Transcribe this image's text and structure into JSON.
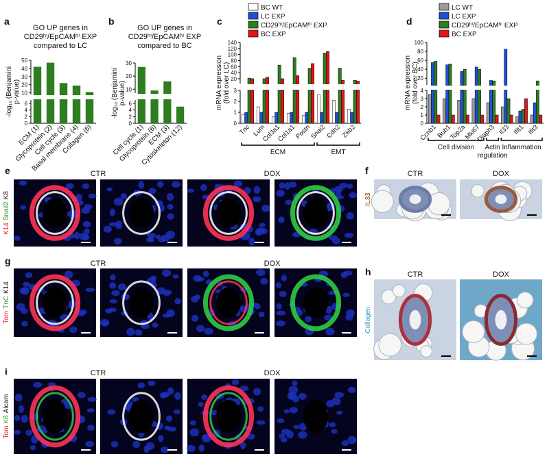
{
  "chart_data": [
    {
      "type": "bar",
      "panel": "a",
      "title": [
        "GO UP genes in",
        "CD29ʰⁱ/EpCAMʰⁱ EXP",
        "compared to LC"
      ],
      "ylabel": [
        "-log₁₀ (Benjamini",
        "p-value)"
      ],
      "categories": [
        "ECM (1)",
        "Glycoprotein (2)",
        "Cell cycle (3)",
        "Basal membrane (4)",
        "Collagen (6)"
      ],
      "values": [
        42,
        47,
        22,
        19,
        11
      ],
      "color": "#2e7d1f",
      "ylim": [
        8,
        50
      ],
      "yticks": [
        10,
        20,
        30,
        40,
        50
      ],
      "ylim_low": [
        0,
        7
      ],
      "yticks_low": [
        0,
        2,
        4,
        6
      ]
    },
    {
      "type": "bar",
      "panel": "b",
      "title": [
        "GO UP genes in",
        "CD29ʰⁱ/EpCAMʰⁱ EXP",
        "compared to BC"
      ],
      "ylabel": [
        "-log₁₀ (Benjamini",
        "p-value)"
      ],
      "categories": [
        "Cell cycle (1)",
        "Glycoprotein (6)",
        "ECM (3)",
        "Cytoskeleton (12)"
      ],
      "values": [
        27,
        9,
        16,
        5
      ],
      "color": "#2e7d1f",
      "ylim": [
        7,
        30
      ],
      "yticks": [
        10,
        20,
        30
      ],
      "ylim_low": [
        0,
        7
      ],
      "yticks_low": [
        0,
        2,
        4,
        6
      ]
    },
    {
      "type": "grouped-bar",
      "panel": "c",
      "ylabel": [
        "mRNA expression",
        "(fold over LC)"
      ],
      "categories": [
        "Tnc",
        "Lum",
        "Col3a1",
        "Col1a1",
        "Postn",
        "Snai2",
        "Cdh2",
        "Zeb2"
      ],
      "series": [
        {
          "name": "BC WT",
          "color": "#ffffff",
          "values": [
            0.8,
            1.5,
            0.6,
            0.9,
            0.7,
            2.6,
            2.1,
            1.3
          ]
        },
        {
          "name": "LC EXP",
          "color": "#1f4fd6",
          "values": [
            1,
            1,
            1,
            1,
            1,
            1,
            1,
            1
          ]
        },
        {
          "name": "CD29ʰⁱ/EpCAMʰⁱ EXP",
          "color": "#2e7d1f",
          "values": [
            22,
            20,
            65,
            90,
            55,
            105,
            55,
            15
          ]
        },
        {
          "name": "BC EXP",
          "color": "#e0141e",
          "values": [
            20,
            25,
            20,
            30,
            70,
            110,
            15,
            12
          ]
        }
      ],
      "ylim": [
        4,
        140
      ],
      "yticks": [
        20,
        40,
        60,
        80,
        100,
        120,
        140
      ],
      "ylim_low": [
        0,
        3
      ],
      "yticks_low": [
        0,
        1,
        2,
        3
      ],
      "groups": [
        {
          "label": "ECM",
          "span": [
            0,
            4
          ]
        },
        {
          "label": "EMT",
          "span": [
            5,
            7
          ]
        }
      ]
    },
    {
      "type": "grouped-bar",
      "panel": "d",
      "ylabel": [
        "mRNA expression",
        "(fold over BC)"
      ],
      "categories": [
        "Ccnb1",
        "Bub1",
        "Top2a",
        "Mki67",
        "Diaph3",
        "Il33",
        "Ifit1",
        "Ifit3"
      ],
      "series": [
        {
          "name": "LC WT",
          "color": "#9a9a9a",
          "values": [
            3.5,
            3,
            2.8,
            3,
            2.5,
            2,
            0.8,
            1
          ]
        },
        {
          "name": "LC EXP",
          "color": "#1f4fd6",
          "values": [
            55,
            50,
            35,
            45,
            15,
            85,
            1.5,
            2.5
          ]
        },
        {
          "name": "CD29ʰⁱ/EpCAMʰⁱ EXP",
          "color": "#2e7d1f",
          "values": [
            58,
            52,
            40,
            40,
            14,
            3,
            1.7,
            14
          ]
        },
        {
          "name": "BC EXP",
          "color": "#e0141e",
          "values": [
            1,
            1,
            1,
            1,
            1,
            1,
            3,
            1
          ]
        }
      ],
      "ylim": [
        5,
        100
      ],
      "yticks": [
        20,
        40,
        60,
        80,
        100
      ],
      "ylim_low": [
        0,
        4
      ],
      "yticks_low": [
        0,
        1,
        2,
        3,
        4
      ],
      "groups": [
        {
          "label": "Cell division",
          "span": [
            0,
            3
          ]
        },
        {
          "label": "Actin regulation",
          "span": [
            4,
            4
          ]
        },
        {
          "label": "Inflammation",
          "span": [
            5,
            7
          ]
        }
      ]
    }
  ],
  "images": [
    {
      "label": "e",
      "conditions": [
        "CTR",
        "DOX"
      ],
      "stain": [
        {
          "text": "K14",
          "color": "#e8202a"
        },
        {
          "text": "Snail2",
          "color": "#2ca02c"
        },
        {
          "text": "K8",
          "color": "#111111"
        }
      ]
    },
    {
      "label": "f",
      "conditions": [
        "CTR",
        "DOX"
      ],
      "stain": [
        {
          "text": "IL33",
          "color": "#8b4513"
        }
      ]
    },
    {
      "label": "g",
      "conditions": [
        "CTR",
        "DOX"
      ],
      "stain": [
        {
          "text": "Tom",
          "color": "#e8202a"
        },
        {
          "text": "TnC",
          "color": "#2ca02c"
        },
        {
          "text": "K14",
          "color": "#111111"
        }
      ]
    },
    {
      "label": "h",
      "conditions": [
        "CTR",
        "DOX"
      ],
      "stain": [
        {
          "text": "Collagen",
          "color": "#3399cc"
        }
      ]
    },
    {
      "label": "i",
      "conditions": [
        "CTR",
        "DOX"
      ],
      "stain": [
        {
          "text": "Tom",
          "color": "#e8202a"
        },
        {
          "text": "K8",
          "color": "#2ca02c"
        },
        {
          "text": "Alcam",
          "color": "#111111"
        }
      ]
    }
  ]
}
